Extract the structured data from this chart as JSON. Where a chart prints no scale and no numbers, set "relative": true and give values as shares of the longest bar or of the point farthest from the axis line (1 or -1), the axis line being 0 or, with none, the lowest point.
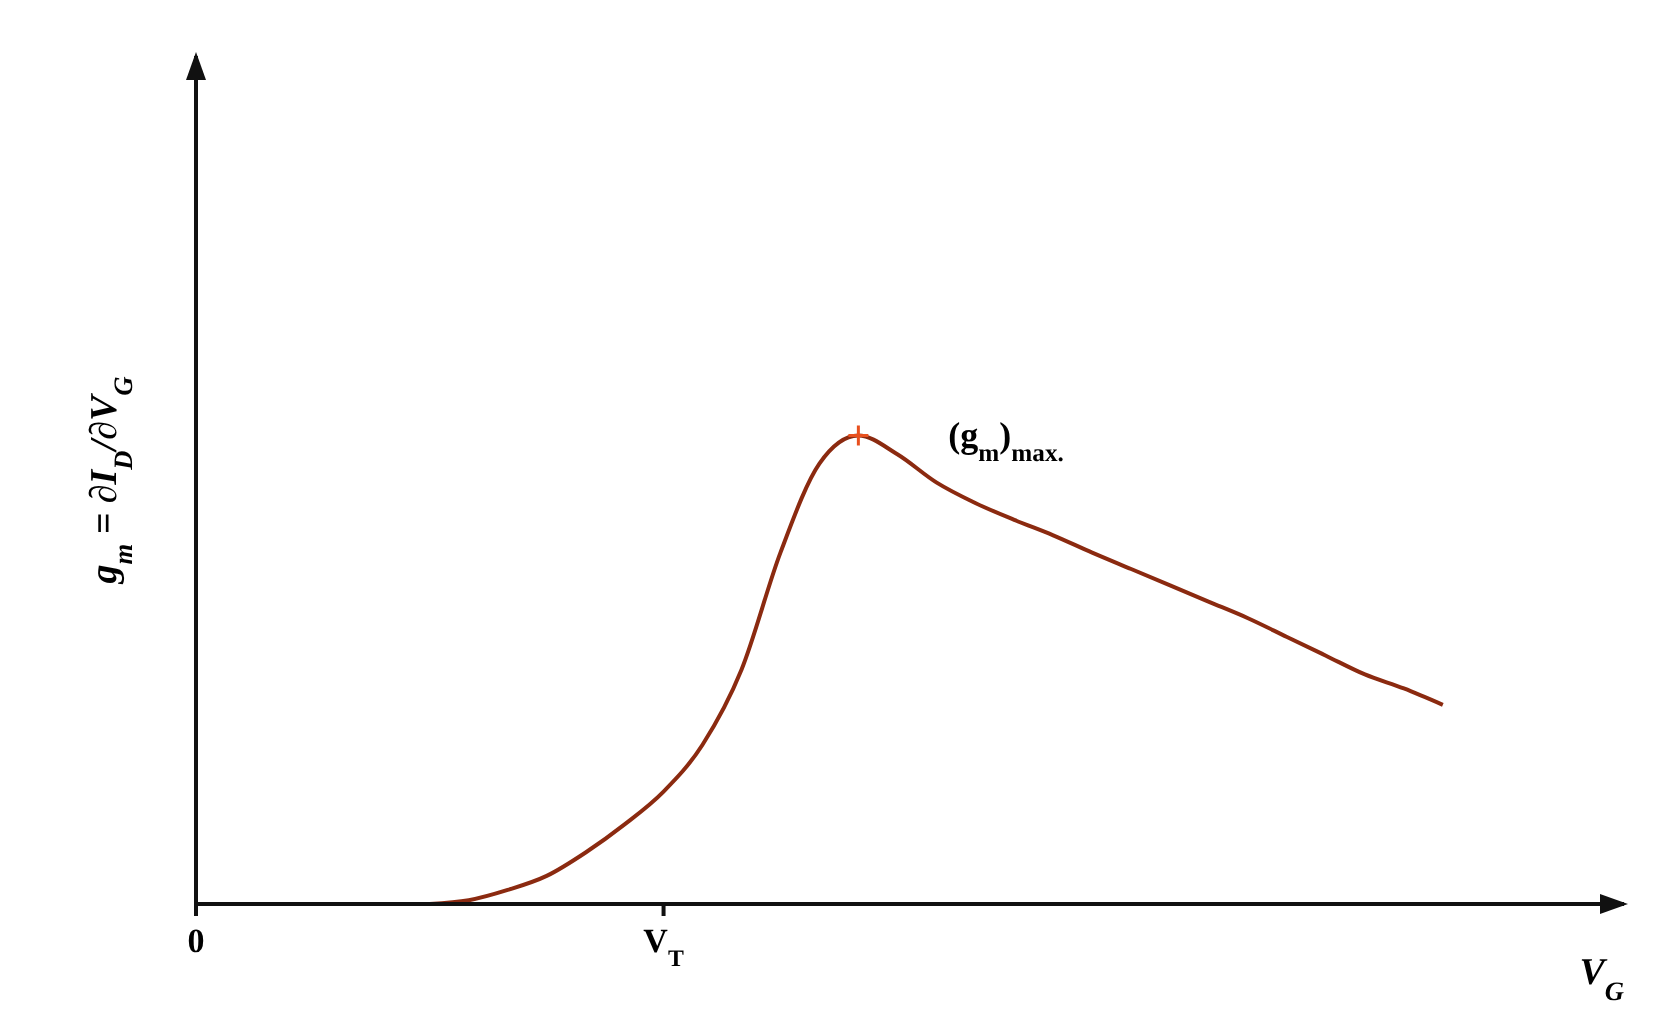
{
  "chart_data": {
    "type": "line",
    "relative": true,
    "xlabel": "V$_{G}$",
    "ylabel": "g$_{m}$ = ∂I$_{D}$/∂V$_{G}$",
    "categories": [
      "0",
      null,
      null,
      null,
      null,
      null,
      null,
      null,
      null,
      null,
      null,
      null,
      "V$_{T}$",
      null,
      null,
      null,
      null,
      null,
      null,
      null,
      null,
      null,
      null,
      null,
      null,
      null,
      null,
      null,
      null,
      null,
      null,
      null,
      null,
      null,
      null,
      null,
      null
    ],
    "marker": "none",
    "grid": false,
    "legend": false,
    "series": [
      {
        "color": "#8b2a10",
        "values": [
          null,
          null,
          null,
          null,
          null,
          null,
          0,
          0.008,
          0.03,
          0.06,
          0.11,
          0.17,
          0.24,
          0.34,
          0.5,
          0.75,
          0.94,
          1.0,
          0.96,
          0.9,
          0.856,
          0.82,
          0.787,
          0.75,
          0.715,
          0.68,
          0.645,
          0.61,
          0.57,
          0.53,
          0.49,
          0.46,
          0.425,
          null,
          null,
          null,
          null
        ]
      },
      {
        "type": "scatter",
        "marker": "cross",
        "color": "#e8501e",
        "values": [
          null,
          null,
          null,
          null,
          null,
          null,
          null,
          null,
          null,
          null,
          null,
          null,
          null,
          null,
          null,
          null,
          null,
          1.0,
          null,
          null,
          null,
          null,
          null,
          null,
          null,
          null,
          null,
          null,
          null,
          null,
          null,
          null,
          null,
          null,
          null,
          null,
          null
        ]
      }
    ],
    "annotations": [
      "(g$_{m}$)$_{max.}$"
    ]
  }
}
